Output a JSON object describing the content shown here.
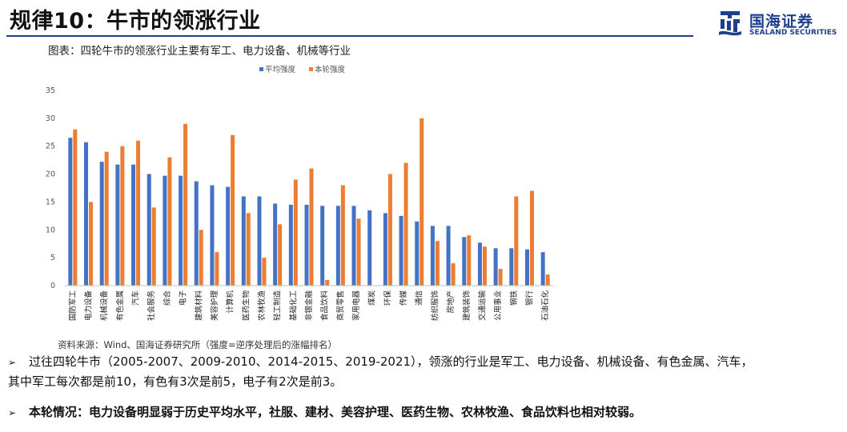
{
  "header": {
    "title": "规律10：牛市的领涨行业",
    "logo_cn": "国海证券",
    "logo_en": "SEALAND SECURITIES"
  },
  "caption": "图表：四轮牛市的领涨行业主要有军工、电力设备、机械等行业",
  "source": "资料来源：Wind、国海证券研究所（强度=逆序处理后的涨幅排名）",
  "bullets": {
    "b1_line1": "过往四轮牛市（2005-2007、2009-2010、2014-2015、2019-2021），领涨的行业是军工、电力设备、机械设备、有色金属、汽车，",
    "b1_line2": "其中军工每次都是前10，有色有3次是前5，电子有2次是前3。",
    "b2": "本轮情况：电力设备明显弱于历史平均水平，社服、建材、美容护理、医药生物、农林牧渔、食品饮料也相对较弱。"
  },
  "colors": {
    "series1": "#4472c4",
    "series2": "#ed7d31",
    "brand": "#1f3e8c"
  },
  "chart_data": {
    "type": "bar",
    "legend_position": "top-center",
    "grid": false,
    "ylim": [
      0,
      35
    ],
    "yticks": [
      0,
      5,
      10,
      15,
      20,
      25,
      30,
      35
    ],
    "categories": [
      "国防军工",
      "电力设备",
      "机械设备",
      "有色金属",
      "汽车",
      "社会服务",
      "综合",
      "电子",
      "建筑材料",
      "美容护理",
      "计算机",
      "医药生物",
      "农林牧渔",
      "轻工制造",
      "基础化工",
      "非银金融",
      "食品饮料",
      "商贸零售",
      "家用电器",
      "煤炭",
      "环保",
      "传媒",
      "通信",
      "纺织服饰",
      "房地产",
      "建筑装饰",
      "交通运输",
      "公用事业",
      "钢铁",
      "银行",
      "石油石化"
    ],
    "series": [
      {
        "name": "平均强度",
        "values": [
          26.5,
          25.7,
          22.2,
          21.7,
          21.7,
          20.0,
          19.7,
          19.7,
          18.7,
          18.0,
          17.7,
          16.0,
          16.0,
          14.7,
          14.5,
          14.5,
          14.3,
          14.3,
          14.3,
          13.5,
          13.0,
          12.5,
          11.5,
          10.7,
          10.7,
          8.7,
          7.7,
          6.7,
          6.7,
          6.5,
          6.0
        ]
      },
      {
        "name": "本轮强度",
        "values": [
          28,
          15,
          24,
          25,
          26,
          14,
          23,
          29,
          10,
          6,
          27,
          13,
          5,
          11,
          19,
          21,
          1,
          18,
          12,
          0,
          20,
          22,
          30,
          8,
          4,
          9,
          7,
          3,
          16,
          17,
          2
        ]
      }
    ]
  }
}
